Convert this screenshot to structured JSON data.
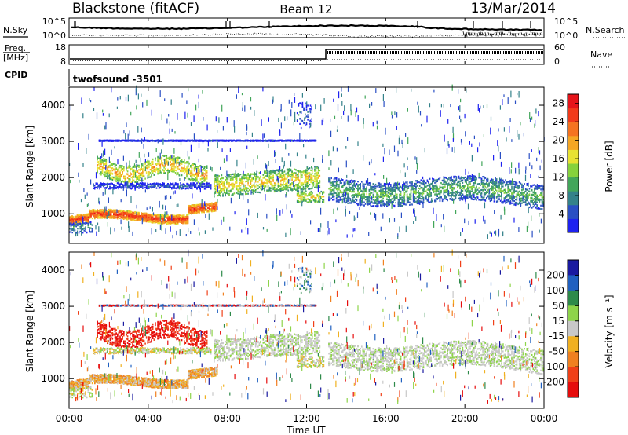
{
  "header": {
    "station": "Blackstone (fitACF)",
    "beam": "Beam 12",
    "date": "13/Mar/2014"
  },
  "top_panels": {
    "nsky_label": "N.Sky",
    "nsky_ticks": [
      "10^5",
      "10^0"
    ],
    "nsearch_label": "N.Search",
    "nsearch_ticks": [
      "10^5",
      "10^0"
    ],
    "freq_label": "Freq.",
    "freq_unit": "[MHz]",
    "freq_ticks": [
      "18",
      "8"
    ],
    "nave_label": "Nave",
    "nave_ticks": [
      "60",
      "0"
    ],
    "cpid_label": "CPID",
    "cpid_value": "twofsound  -3501"
  },
  "chart_data": [
    {
      "type": "heatmap",
      "panel": "power",
      "ylabel": "Slant Range [km]",
      "xlabel": "Time UT",
      "x_ticks": [
        "00:00",
        "04:00",
        "08:00",
        "12:00",
        "16:00",
        "20:00",
        "00:00"
      ],
      "xlim_hours": [
        0,
        24
      ],
      "y_ticks": [
        "1000",
        "2000",
        "3000",
        "4000"
      ],
      "ylim": [
        180,
        4500
      ],
      "colorbar_label": "Power [dB]",
      "colorbar_ticks": [
        "4",
        "8",
        "12",
        "16",
        "20",
        "24",
        "28"
      ],
      "colorbar_range": [
        0,
        30
      ],
      "colorbar_colors": [
        "#1e22f0",
        "#2a4fc4",
        "#34828a",
        "#42a65a",
        "#86d23c",
        "#e8e232",
        "#f5a623",
        "#f57320",
        "#f23a1a",
        "#e6141a"
      ]
    },
    {
      "type": "heatmap",
      "panel": "velocity",
      "ylabel": "Slant Range [km]",
      "xlabel": "Time UT",
      "x_ticks": [
        "00:00",
        "04:00",
        "08:00",
        "12:00",
        "16:00",
        "20:00",
        "00:00"
      ],
      "xlim_hours": [
        0,
        24
      ],
      "y_ticks": [
        "1000",
        "2000",
        "3000",
        "4000"
      ],
      "ylim": [
        180,
        4500
      ],
      "colorbar_label": "Velocity [m s⁻¹]",
      "colorbar_ticks": [
        "200",
        "100",
        "50",
        "15",
        "-15",
        "-50",
        "-100",
        "-200"
      ],
      "colorbar_colors": [
        "#1a1aa0",
        "#2060c0",
        "#2e8a4a",
        "#8ed44a",
        "#c8c8c8",
        "#f0b020",
        "#f08020",
        "#f04018",
        "#e60c0c"
      ]
    }
  ],
  "x_axis_label": "Time UT"
}
